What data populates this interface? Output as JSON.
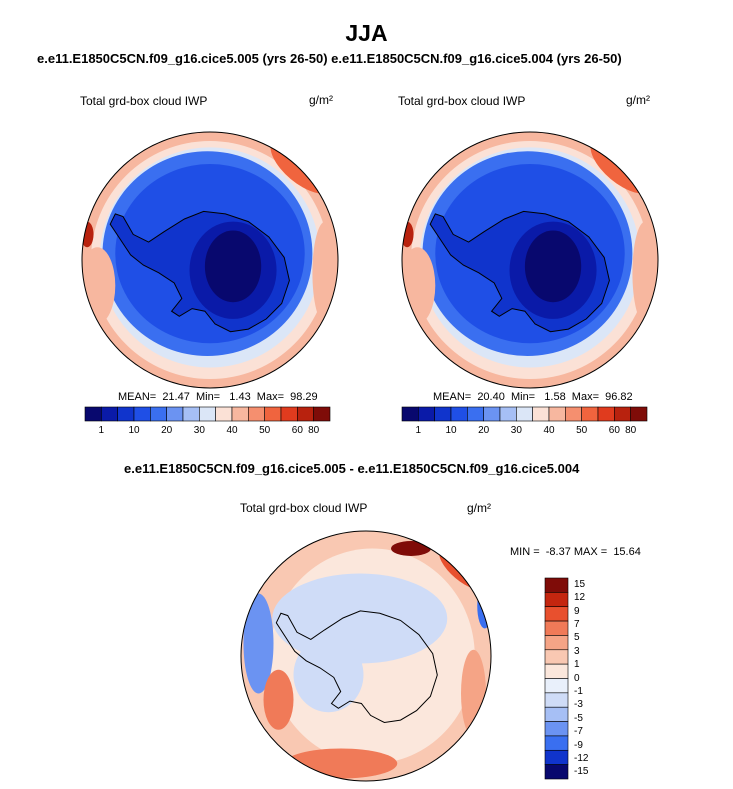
{
  "header": {
    "title": "JJA",
    "subtitle": "e.e11.E1850C5CN.f09_g16.cice5.005 (yrs 26-50)  e.e11.E1850C5CN.f09_g16.cice5.004 (yrs 26-50)",
    "diff_title": "e.e11.E1850C5CN.f09_g16.cice5.005 - e.e11.E1850C5CN.f09_g16.cice5.004"
  },
  "colors": {
    "abs_scale": [
      "#08086e",
      "#0a1aa8",
      "#1034cc",
      "#1f4fe6",
      "#3a6ff0",
      "#6b93f2",
      "#a6bff5",
      "#dbe6f7",
      "#fbe1d6",
      "#f7b79f",
      "#f58f6f",
      "#f0643e",
      "#e03b1e",
      "#b8220e",
      "#7f0c08"
    ],
    "diff_scale": [
      "#08086e",
      "#1034cc",
      "#3a6ff0",
      "#6b93f2",
      "#a6bff5",
      "#cfdcf7",
      "#e9f0fb",
      "#fbe7dc",
      "#f9c8b2",
      "#f5a486",
      "#f07a58",
      "#e8502e",
      "#c4260f",
      "#7f0c08"
    ],
    "coast": "#000000"
  },
  "chart_data": [
    {
      "type": "heatmap",
      "projection": "south-polar-stereographic",
      "label": "Total grd-box cloud IWP",
      "units": "g/m²",
      "stats": {
        "mean": 21.47,
        "min": 1.43,
        "max": 98.29
      },
      "stats_text": "MEAN=  21.47  Min=   1.43  Max=  98.29",
      "colorbar_ticks": [
        "1",
        "10",
        "20",
        "30",
        "40",
        "50",
        "60",
        "80"
      ]
    },
    {
      "type": "heatmap",
      "projection": "south-polar-stereographic",
      "label": "Total grd-box cloud IWP",
      "units": "g/m²",
      "stats": {
        "mean": 20.4,
        "min": 1.58,
        "max": 96.82
      },
      "stats_text": "MEAN=  20.40  Min=   1.58  Max=  96.82",
      "colorbar_ticks": [
        "1",
        "10",
        "20",
        "30",
        "40",
        "50",
        "60",
        "80"
      ]
    },
    {
      "type": "heatmap",
      "projection": "south-polar-stereographic",
      "label": "Total grd-box cloud IWP",
      "units": "g/m²",
      "stats": {
        "min": -8.37,
        "max": 15.64
      },
      "stats_text": "MIN =  -8.37 MAX =  15.64",
      "colorbar_ticks": [
        "15",
        "12",
        "9",
        "7",
        "5",
        "3",
        "1",
        "0",
        "-1",
        "-3",
        "-5",
        "-7",
        "-9",
        "-12",
        "-15"
      ]
    }
  ]
}
